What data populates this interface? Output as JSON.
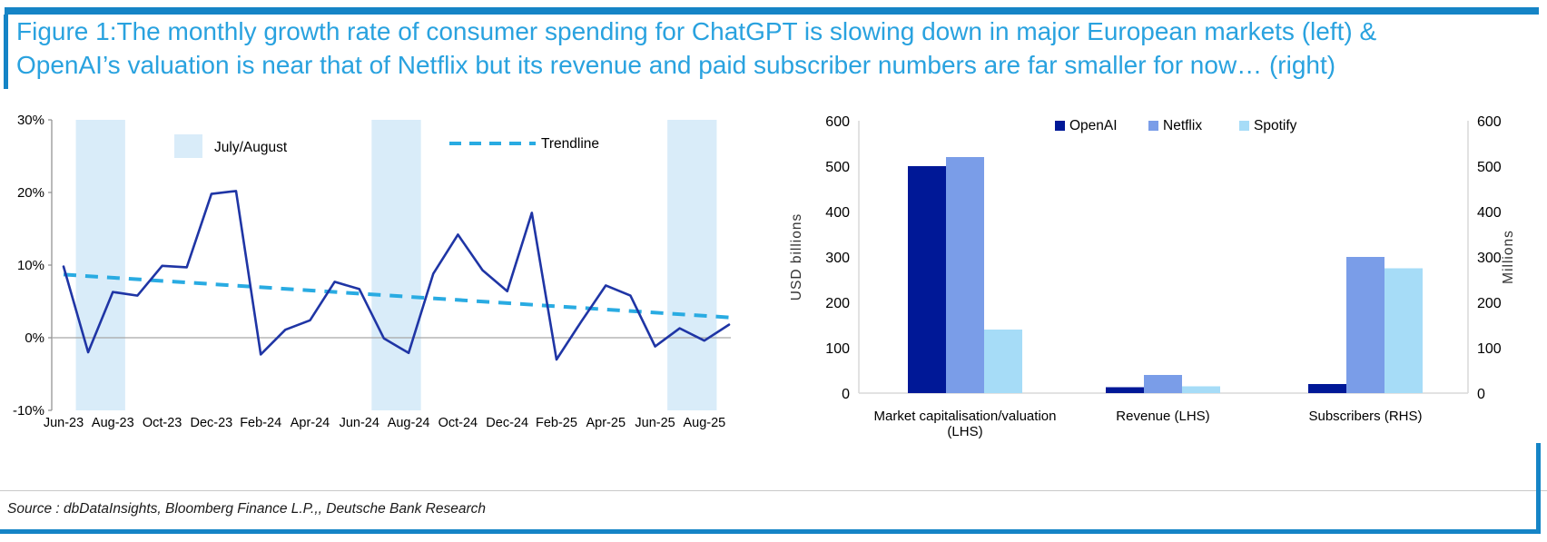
{
  "header": {
    "title_line1": "Figure 1:The monthly growth rate of consumer spending for ChatGPT is slowing down in major European markets (left) &",
    "title_line2": "OpenAI’s valuation is near that of Netflix but its revenue and paid subscriber numbers are far smaller for now… (right)"
  },
  "footer": {
    "source": "Source : dbDataInsights, Bloomberg Finance L.P.,, Deutsche Bank Research"
  },
  "colors": {
    "frame_blue": "#1584C6",
    "title_blue": "#29A2DF",
    "line_navy": "#1F35A5",
    "trend_cyan": "#29ABE2",
    "band_light_blue": "#D9ECF9",
    "zero_line_gray": "#A6A6A6",
    "axis_gray": "#8C8C8C",
    "right_axis_gray": "#D9D9D9",
    "openai_navy": "#001897",
    "netflix_periwinkle": "#7A9DE8",
    "spotify_light_blue": "#A6DCF7",
    "tick_text": "#000000"
  },
  "chart_data": [
    {
      "type": "line",
      "title": "Monthly growth rate of consumer spending for ChatGPT (European markets)",
      "x": [
        "Jun-23",
        "Jul-23",
        "Aug-23",
        "Sep-23",
        "Oct-23",
        "Nov-23",
        "Dec-23",
        "Jan-24",
        "Feb-24",
        "Mar-24",
        "Apr-24",
        "May-24",
        "Jun-24",
        "Jul-24",
        "Aug-24",
        "Sep-24",
        "Oct-24",
        "Nov-24",
        "Dec-24",
        "Jan-25",
        "Feb-25",
        "Mar-25",
        "Apr-25",
        "May-25",
        "Jun-25",
        "Jul-25",
        "Aug-25",
        "Sep-25"
      ],
      "series": [
        {
          "name": "Monthly growth rate",
          "values": [
            9.8,
            -2.0,
            6.3,
            5.8,
            9.9,
            9.7,
            19.8,
            20.2,
            -2.3,
            1.1,
            2.4,
            7.7,
            6.7,
            -0.1,
            -2.1,
            8.8,
            14.2,
            9.3,
            6.4,
            17.2,
            -3.0,
            2.2,
            7.2,
            5.8,
            -1.2,
            1.3,
            -0.4,
            1.8
          ]
        }
      ],
      "trendline": {
        "name": "Trendline",
        "start_value": 8.7,
        "end_value": 2.8
      },
      "shaded_bands": {
        "label": "July/August",
        "months": [
          "Jul-23",
          "Jul-24",
          "Jul-25"
        ]
      },
      "legend": [
        "July/August",
        "Trendline"
      ],
      "ylim": [
        -10,
        30
      ],
      "yticks": [
        {
          "v": 30,
          "label": "30%"
        },
        {
          "v": 20,
          "label": "20%"
        },
        {
          "v": 10,
          "label": "10%"
        },
        {
          "v": 0,
          "label": "0%"
        },
        {
          "v": -10,
          "label": "-10%"
        }
      ],
      "xtick_labels": [
        "Jun-23",
        "Aug-23",
        "Oct-23",
        "Dec-23",
        "Feb-24",
        "Apr-24",
        "Jun-24",
        "Aug-24",
        "Oct-24",
        "Dec-24",
        "Feb-25",
        "Apr-25",
        "Jun-25",
        "Aug-25"
      ],
      "grid": "off",
      "legend_position": "top-inside"
    },
    {
      "type": "bar",
      "title": "OpenAI vs Netflix vs Spotify",
      "categories": [
        "Market capitalisation/valuation (LHS)",
        "Revenue (LHS)",
        "Subscribers (RHS)"
      ],
      "categories_display": [
        [
          "Market capitalisation/valuation",
          "(LHS)"
        ],
        [
          "Revenue (LHS)"
        ],
        [
          "Subscribers (RHS)"
        ]
      ],
      "series": [
        {
          "name": "OpenAI",
          "values": [
            500,
            13,
            20
          ]
        },
        {
          "name": "Netflix",
          "values": [
            520,
            40,
            300
          ]
        },
        {
          "name": "Spotify",
          "values": [
            140,
            15,
            275
          ]
        }
      ],
      "left_axis": {
        "label": "USD billions",
        "ticks": [
          0,
          100,
          200,
          300,
          400,
          500,
          600
        ],
        "lim": [
          0,
          600
        ]
      },
      "right_axis": {
        "label": "Millions",
        "ticks": [
          0,
          100,
          200,
          300,
          400,
          500,
          600
        ],
        "lim": [
          0,
          600
        ]
      },
      "grid": "off",
      "legend_position": "top-inside"
    }
  ]
}
